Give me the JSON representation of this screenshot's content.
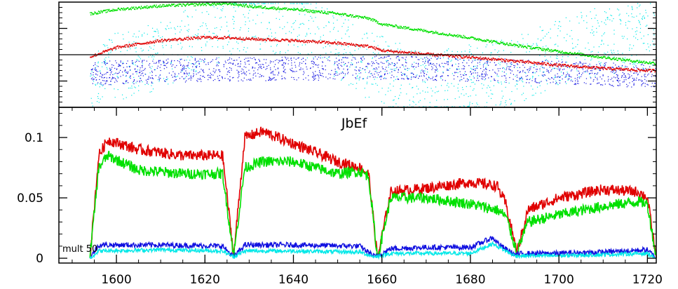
{
  "chart_data": [
    {
      "type": "scatter",
      "title": "",
      "xlabel": "",
      "ylabel": "",
      "xlim": [
        1587,
        1722
      ],
      "ylim": [
        -1,
        1
      ],
      "grid": false,
      "reference_line_y": 0,
      "series": [
        {
          "color": "#00e000",
          "x": [
            1594,
            1600,
            1610,
            1620,
            1626,
            1630,
            1640,
            1650,
            1657,
            1660,
            1670,
            1680,
            1690,
            1700,
            1710,
            1715,
            1720,
            1722
          ],
          "values": [
            0.78,
            0.86,
            0.93,
            0.96,
            0.97,
            0.92,
            0.86,
            0.78,
            0.69,
            0.58,
            0.45,
            0.32,
            0.18,
            0.06,
            -0.05,
            -0.1,
            -0.15,
            -0.16
          ]
        },
        {
          "color": "#e00000",
          "x": [
            1594,
            1600,
            1610,
            1620,
            1626,
            1630,
            1640,
            1650,
            1657,
            1660,
            1670,
            1680,
            1690,
            1700,
            1710,
            1715,
            1720,
            1722
          ],
          "values": [
            -0.04,
            0.14,
            0.27,
            0.33,
            0.32,
            0.3,
            0.27,
            0.22,
            0.16,
            0.08,
            0.01,
            -0.05,
            -0.12,
            -0.2,
            -0.26,
            -0.28,
            -0.3,
            -0.3
          ]
        },
        {
          "color": "#1010e0",
          "x": [
            1594,
            1610,
            1626,
            1640,
            1657,
            1670,
            1690,
            1705,
            1722
          ],
          "values": [
            -0.35,
            -0.3,
            -0.27,
            -0.26,
            -0.24,
            -0.25,
            -0.3,
            -0.35,
            -0.4
          ]
        },
        {
          "color": "#00e8e8",
          "x": [
            1594,
            1610,
            1626,
            1640,
            1657,
            1670,
            1690,
            1705,
            1722
          ],
          "values": [
            -0.35,
            0.0,
            0.6,
            0.7,
            -0.2,
            -0.6,
            -0.3,
            0.2,
            0.4
          ]
        }
      ]
    },
    {
      "type": "line",
      "title": "JbEf",
      "xlabel": "",
      "ylabel": "",
      "xlim": [
        1587,
        1722
      ],
      "ylim": [
        -0.004,
        0.125
      ],
      "grid": false,
      "x_ticks": [
        1600,
        1620,
        1640,
        1660,
        1680,
        1700,
        1720
      ],
      "y_ticks": [
        0,
        0.05,
        0.1
      ],
      "x_tick_labels": [
        "1600",
        "1620",
        "1640",
        "1660",
        "1680",
        "1700",
        "1720"
      ],
      "y_tick_labels": [
        "0",
        "0.05",
        "0.1"
      ],
      "annotation": "mult 50",
      "series": [
        {
          "color": "#e00000",
          "x": [
            1594,
            1596,
            1598,
            1605,
            1615,
            1624,
            1626.5,
            1629,
            1633,
            1640,
            1650,
            1655,
            1657,
            1659,
            1662,
            1670,
            1680,
            1686,
            1688,
            1690.5,
            1693,
            1700,
            1710,
            1718,
            1720,
            1722
          ],
          "values": [
            0.0,
            0.085,
            0.098,
            0.09,
            0.085,
            0.085,
            0.002,
            0.1,
            0.105,
            0.095,
            0.08,
            0.075,
            0.07,
            0.0,
            0.055,
            0.058,
            0.063,
            0.06,
            0.045,
            0.005,
            0.04,
            0.05,
            0.057,
            0.055,
            0.05,
            0.0
          ]
        },
        {
          "color": "#00e000",
          "x": [
            1594,
            1596,
            1598,
            1605,
            1615,
            1624,
            1626.5,
            1629,
            1633,
            1640,
            1650,
            1655,
            1657,
            1659,
            1662,
            1670,
            1680,
            1686,
            1688,
            1690.5,
            1693,
            1700,
            1710,
            1718,
            1720,
            1722
          ],
          "values": [
            0.0,
            0.075,
            0.085,
            0.073,
            0.07,
            0.07,
            0.002,
            0.075,
            0.08,
            0.08,
            0.07,
            0.072,
            0.068,
            0.0,
            0.05,
            0.05,
            0.045,
            0.04,
            0.035,
            0.005,
            0.03,
            0.036,
            0.043,
            0.047,
            0.045,
            0.0
          ]
        },
        {
          "color": "#1010e0",
          "x": [
            1594,
            1596,
            1610,
            1624,
            1626.5,
            1629,
            1640,
            1655,
            1658.5,
            1662,
            1670,
            1680,
            1685,
            1687,
            1690,
            1692,
            1700,
            1710,
            1720,
            1722
          ],
          "values": [
            0.0,
            0.011,
            0.011,
            0.01,
            0.001,
            0.011,
            0.011,
            0.01,
            0.001,
            0.008,
            0.009,
            0.009,
            0.017,
            0.01,
            0.003,
            0.004,
            0.004,
            0.005,
            0.007,
            0.0
          ]
        },
        {
          "color": "#00e8e8",
          "x": [
            1594,
            1596,
            1610,
            1624,
            1626.5,
            1629,
            1640,
            1655,
            1658.5,
            1662,
            1670,
            1680,
            1685,
            1687,
            1690,
            1692,
            1700,
            1710,
            1720,
            1722
          ],
          "values": [
            0.0,
            0.006,
            0.007,
            0.006,
            0.001,
            0.006,
            0.006,
            0.005,
            0.001,
            0.004,
            0.004,
            0.004,
            0.012,
            0.008,
            0.002,
            0.002,
            0.002,
            0.003,
            0.004,
            0.0
          ]
        }
      ]
    }
  ]
}
